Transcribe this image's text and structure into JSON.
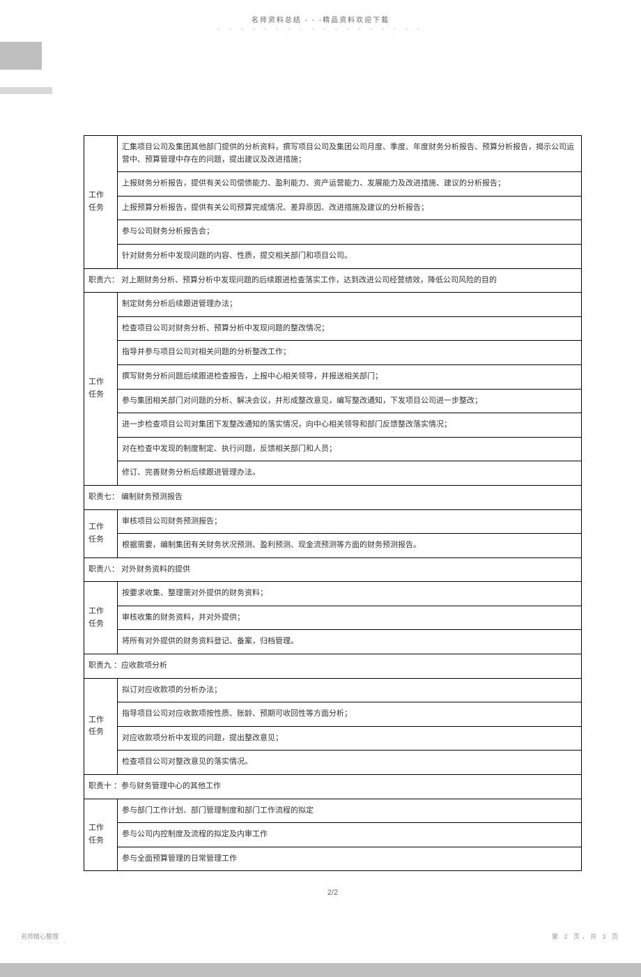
{
  "header": {
    "title": "名师资料总结 - - -精品资料欢迎下载",
    "dots": "- - - - - - - - - - - - - - - - - -"
  },
  "table": {
    "label_work": "工作",
    "label_task": "任务",
    "section1": {
      "rows": [
        "汇集项目公司及集团其他部门提供的分析资料，撰写项目公司及集团公司月度、季度、年度财务分析报告、预算分析报告，揭示公司运营中、预算管理中存在的问题，提出建议及改进措施；",
        "上报财务分析报告，提供有关公司偿债能力、盈利能力、资产运营能力、发展能力及改进措施、建议的分析报告；",
        "上报预算分析报告，提供有关公司预算完成情况、差异原因、改进措施及建议的分析报告；",
        "参与公司财务分析报告会；",
        "针对财务分析中发现问题的内容、性质，提交相关部门和项目公司。"
      ]
    },
    "duty6": {
      "header": "职责六： 对上期财务分析、预算分析中发现问题的后续跟进检查落实工作，达到改进公司经营绩效，降低公司风险的目的",
      "rows": [
        "制定财务分析后续跟进管理办法；",
        "检查项目公司对财务分析、预算分析中发现问题的整改情况；",
        "指导并参与项目公司对相关问题的分析整改工作；",
        "撰写财务分析问题后续跟进检查报告，上报中心相关领导，并报送相关部门；",
        "参与集团相关部门对问题的分析、解决会议，并形成整改意见，编写整改通知，下发项目公司进一步整改；",
        "进一步检查项目公司对集团下发整改通知的落实情况，向中心相关领导和部门反馈整改落实情况；",
        "对在检查中发现的制度制定、执行问题，反馈相关部门和人员；",
        "修订、完善财务分析后续跟进管理办法。"
      ]
    },
    "duty7": {
      "header": "职责七： 编制财务预测报告",
      "rows": [
        "审核项目公司财务预测报告；",
        "根据需要，编制集团有关财务状况预测、盈利预测、现金流预测等方面的财务预测报告。"
      ]
    },
    "duty8": {
      "header": "职责八： 对外财务资料的提供",
      "rows": [
        "按要求收集、整理需对外提供的财务资料；",
        "审核收集的财务资料，并对外提供；",
        "将所有对外提供的财务资料登记、备案，归档管理。"
      ]
    },
    "duty9": {
      "header": "职责九 ：应收款项分析",
      "rows": [
        "拟订对应收款项的分析办法；",
        "指导项目公司对应收款项按性质、账龄、预期可收回性等方面分析；",
        "对应收款项分析中发现的问题，提出整改意见；",
        "检查项目公司对整改意见的落实情况。"
      ]
    },
    "duty10": {
      "header": "职责十 ：参与财务管理中心的其他工作",
      "rows": [
        "参与部门工作计划、部门管理制度和部门工作流程的拟定",
        "参与公司内控制度及流程的拟定及内审工作",
        "参与全面预算管理的日常管理工作"
      ]
    }
  },
  "page_number": "2/2",
  "footer": {
    "left": "名师精心整理",
    "left_dots": "- - - - - - -",
    "right": "第 2 页，共 3 页"
  }
}
